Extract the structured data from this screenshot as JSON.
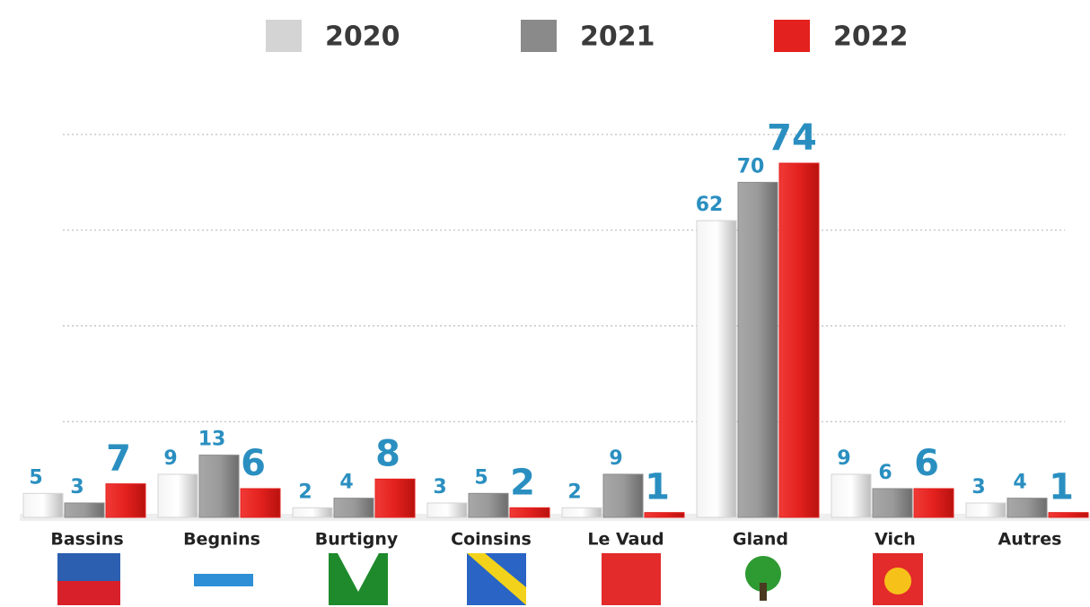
{
  "chart_data": {
    "type": "bar",
    "categories": [
      "Bassins",
      "Begnins",
      "Burtigny",
      "Coinsins",
      "Le Vaud",
      "Gland",
      "Vich",
      "Autres"
    ],
    "series": [
      {
        "name": "2020",
        "color": "#d4d4d4",
        "values": [
          5,
          9,
          2,
          3,
          2,
          62,
          9,
          3
        ]
      },
      {
        "name": "2021",
        "color": "#8a8a8a",
        "values": [
          3,
          13,
          4,
          5,
          9,
          70,
          6,
          4
        ]
      },
      {
        "name": "2022",
        "color": "#e3211e",
        "values": [
          7,
          6,
          8,
          2,
          1,
          74,
          6,
          1
        ]
      }
    ],
    "ylim": [
      0,
      80
    ],
    "yticks": [
      0,
      20,
      40,
      60,
      80
    ],
    "grid": true,
    "legend": "top"
  }
}
